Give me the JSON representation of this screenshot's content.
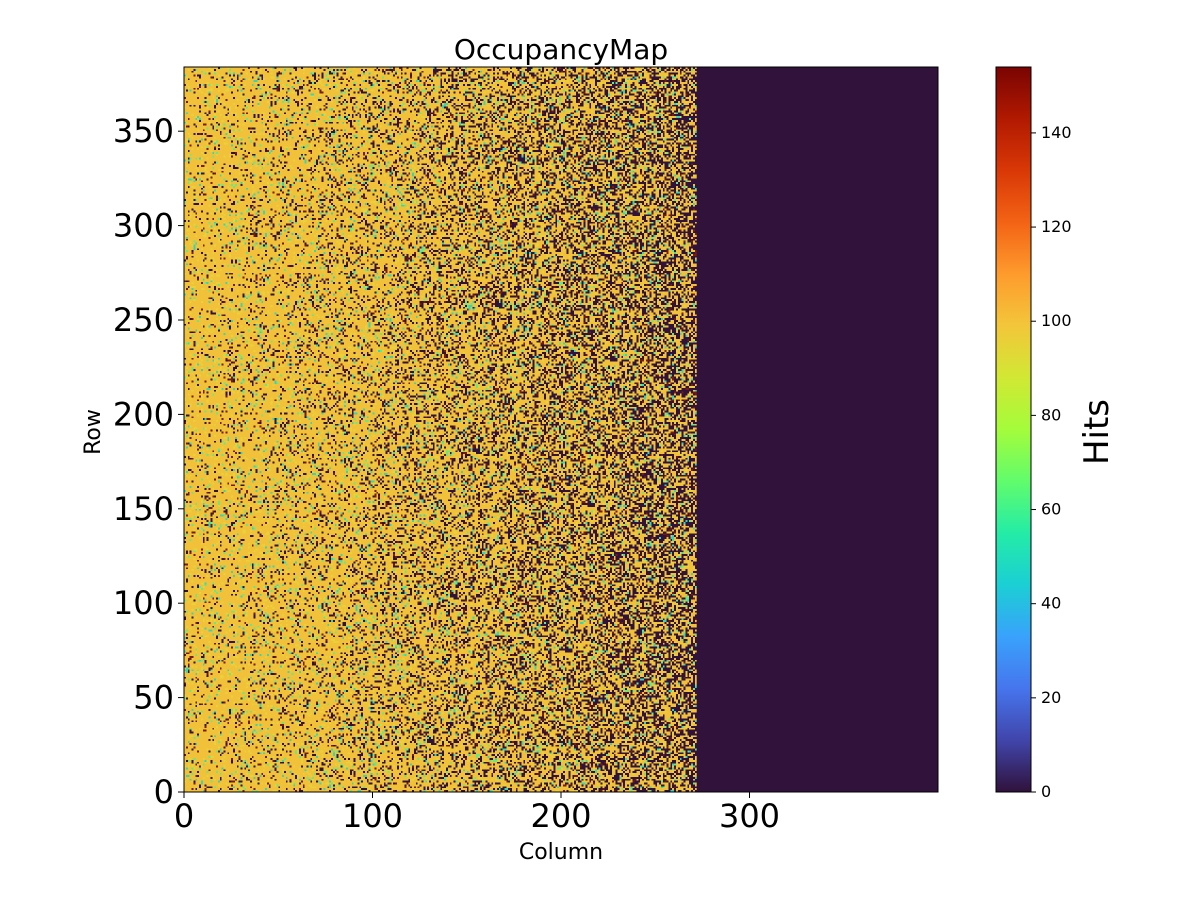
{
  "chart_data": {
    "type": "heatmap",
    "title": "OccupancyMap",
    "xlabel": "Column",
    "ylabel": "Row",
    "xlim": [
      0,
      400
    ],
    "ylim": [
      0,
      384
    ],
    "x_ticks": [
      0,
      100,
      200,
      300
    ],
    "x_tick_labels": [
      "0",
      "100",
      "200",
      "300"
    ],
    "y_ticks": [
      0,
      50,
      100,
      150,
      200,
      250,
      300,
      350
    ],
    "y_tick_labels": [
      "0",
      "50",
      "100",
      "150",
      "200",
      "250",
      "300",
      "350"
    ],
    "active_columns": [
      0,
      272
    ],
    "inactive_region_value": 0,
    "typical_active_value": 100,
    "colormap": "turbo",
    "colorbar": {
      "label": "Hits",
      "range": [
        0,
        154
      ],
      "ticks": [
        0,
        20,
        40,
        60,
        80,
        100,
        120,
        140
      ],
      "tick_labels": [
        "0",
        "20",
        "40",
        "60",
        "80",
        "100",
        "120",
        "140"
      ],
      "stops": [
        "#30123b",
        "#4145ab",
        "#4675ed",
        "#39a2fc",
        "#1bcfd4",
        "#24eca6",
        "#61fc6c",
        "#a4fc3b",
        "#d1e834",
        "#f3c63a",
        "#fe9b2d",
        "#f36315",
        "#d93806",
        "#b11901",
        "#7a0402"
      ]
    },
    "pixel_colors": {
      "background": "#30123b",
      "hit": "#f2c13a",
      "hit_light": "#e7d23a",
      "teal": "#35d6b8",
      "green": "#5cec8c",
      "dark_red": "#7a1a0a"
    }
  }
}
